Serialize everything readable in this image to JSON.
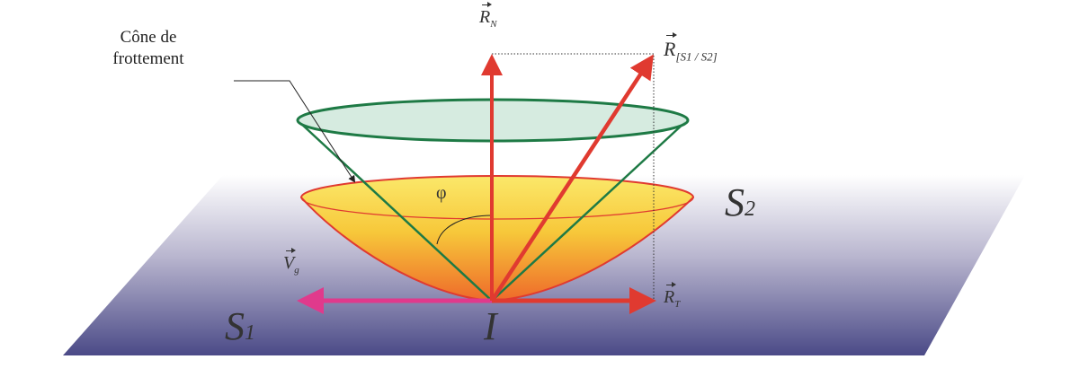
{
  "labels": {
    "cone_label_line1": "Cône de",
    "cone_label_line2": "frottement",
    "normal_force": "R",
    "normal_force_sub": "N",
    "resultant_force": "R",
    "resultant_force_sub": "[S1 / S2]",
    "tangential_force": "R",
    "tangential_force_sub": "T",
    "sliding_velocity": "V",
    "sliding_velocity_sub": "g",
    "angle": "φ",
    "solid_1": "S",
    "solid_1_sub": "1",
    "solid_2": "S",
    "solid_2_sub": "2",
    "contact_point": "I"
  },
  "colors": {
    "plane_top": "#ffffff",
    "plane_bottom": "#4b4a87",
    "cone_green": "#1e7a45",
    "cone_fill": "#cfe8da",
    "bowl_top": "#fbe24a",
    "bowl_bottom": "#ee6a2a",
    "force_red": "#e03a30",
    "velocity_pink": "#e03a8c"
  }
}
